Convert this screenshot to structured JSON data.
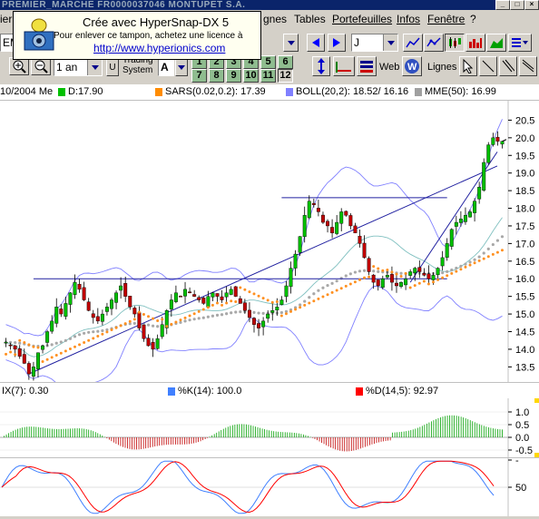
{
  "window": {
    "title": "PREMIER_MARCHE    FR0000037046  MONTUPET S.A."
  },
  "menu": {
    "items": [
      "ier",
      "gnes",
      "Tables",
      "Portefeuilles",
      "Infos",
      "Fenêtre",
      "?"
    ]
  },
  "popup": {
    "line1": "Crée avec HyperSnap-DX 5",
    "line2": "Pour enlever ce tampon, achetez une licence à",
    "line3": "http://www.hyperionics.com"
  },
  "toolbar": {
    "market_combo": "EMI",
    "period_combo": "J",
    "range_combo": "1 an",
    "range_unit": "U",
    "trading_system_label": "Trading System",
    "ts_combo": "A",
    "number_buttons": [
      "1",
      "2",
      "3",
      "4",
      "5",
      "6",
      "7",
      "8",
      "9",
      "10",
      "11",
      "12"
    ],
    "selected_number": "12",
    "web_label": "Web",
    "lignes_label": "Lignes"
  },
  "infobar": {
    "date": "10/2004 Me",
    "d_label": "D:17.90",
    "sars_label": "SARS(0.02,0.2): 17.39",
    "boll_label": "BOLL(20,2): 18.52/ 16.16",
    "mme_label": "MME(50): 16.99",
    "colors": {
      "d": "#00c000",
      "sars": "#ff8c00",
      "boll": "#8080ff",
      "mme": "#a0a0a0"
    }
  },
  "osc1": {
    "label": "IX(7):  0.30",
    "ticks": [
      "1.0",
      "0.5",
      "0.0",
      "-0.5"
    ]
  },
  "stoch_header": {
    "k_label": "%K(14): 100.0",
    "d_label": "%D(14,5): 92.97",
    "k_color": "#4080ff",
    "d_color": "#ff0000"
  },
  "osc2": {
    "ticks": [
      "-",
      "50"
    ]
  },
  "chart_data": {
    "type": "candlestick",
    "y_ticks": [
      "20.5",
      "20.0",
      "19.5",
      "19.0",
      "18.5",
      "18.0",
      "17.5",
      "17.0",
      "16.5",
      "16.0",
      "15.5",
      "15.0",
      "14.5",
      "14.0",
      "13.5"
    ],
    "ylim": [
      13.2,
      21.0
    ],
    "close_series": [
      14.2,
      14.1,
      14.0,
      13.8,
      13.6,
      13.3,
      13.5,
      13.9,
      14.1,
      14.5,
      14.8,
      15.2,
      15.0,
      15.3,
      15.6,
      15.9,
      15.7,
      15.4,
      15.1,
      14.9,
      14.8,
      15.0,
      15.2,
      15.4,
      15.6,
      15.8,
      15.5,
      15.2,
      15.0,
      14.6,
      14.3,
      14.1,
      14.0,
      14.3,
      14.7,
      15.1,
      15.4,
      15.6,
      15.5,
      15.7,
      15.6,
      15.5,
      15.4,
      15.3,
      15.5,
      15.6,
      15.5,
      15.4,
      15.6,
      15.7,
      15.5,
      15.3,
      15.1,
      14.9,
      14.7,
      14.6,
      14.8,
      15.0,
      15.1,
      15.2,
      15.4,
      15.8,
      16.3,
      16.7,
      17.2,
      17.8,
      18.2,
      18.1,
      17.9,
      17.6,
      17.5,
      17.3,
      17.6,
      17.9,
      17.8,
      17.5,
      17.3,
      17.0,
      16.6,
      16.2,
      15.9,
      15.8,
      16.0,
      16.1,
      15.9,
      15.8,
      15.9,
      16.0,
      16.2,
      16.3,
      16.2,
      16.1,
      16.0,
      16.1,
      16.3,
      16.6,
      17.0,
      17.4,
      17.6,
      17.7,
      17.8,
      17.9,
      18.2,
      18.6,
      19.3,
      19.8,
      20.0,
      19.9,
      19.9
    ],
    "resistance_lines": [
      18.3,
      16.0
    ],
    "annotations": []
  }
}
